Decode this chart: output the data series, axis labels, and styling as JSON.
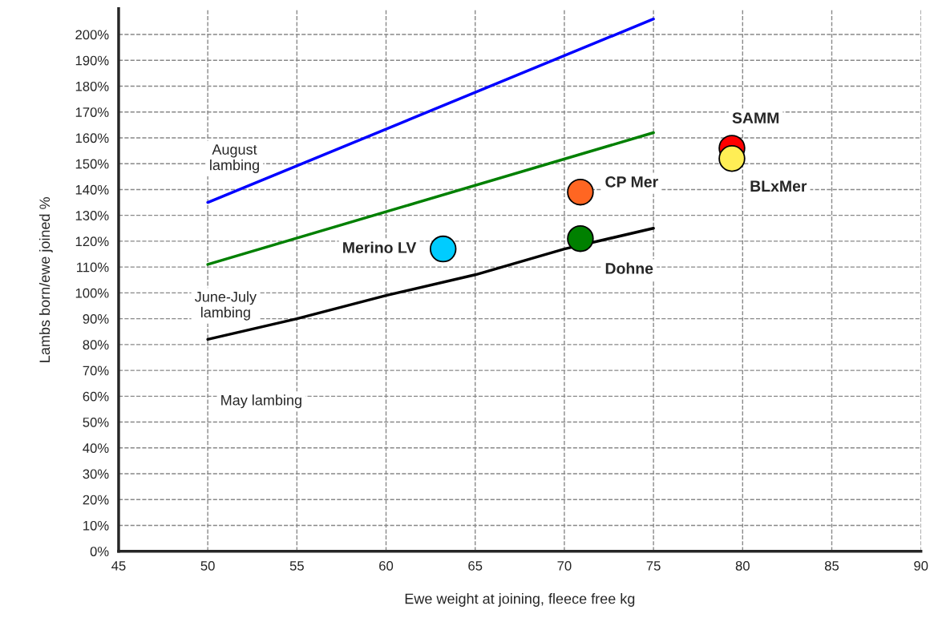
{
  "chart_data": {
    "type": "line",
    "xlabel": "Ewe weight at joining, fleece free kg",
    "ylabel": "Lambs born/ewe joined %",
    "xlim": [
      45,
      90
    ],
    "xticks": [
      45,
      50,
      55,
      60,
      65,
      70,
      75,
      80,
      85,
      90
    ],
    "ylim": [
      0,
      210
    ],
    "yticks": [
      {
        "value": 0,
        "label": "0%"
      },
      {
        "value": 10,
        "label": "10%"
      },
      {
        "value": 20,
        "label": "20%"
      },
      {
        "value": 30,
        "label": "30%"
      },
      {
        "value": 40,
        "label": "40%"
      },
      {
        "value": 50,
        "label": "50%"
      },
      {
        "value": 60,
        "label": "60%"
      },
      {
        "value": 70,
        "label": "70%"
      },
      {
        "value": 80,
        "label": "80%"
      },
      {
        "value": 90,
        "label": "90%"
      },
      {
        "value": 100,
        "label": "100%"
      },
      {
        "value": 110,
        "label": "110%"
      },
      {
        "value": 120,
        "label": "120%"
      },
      {
        "value": 130,
        "label": "130%"
      },
      {
        "value": 140,
        "label": "140%"
      },
      {
        "value": 150,
        "label": "150%"
      },
      {
        "value": 160,
        "label": "160%"
      },
      {
        "value": 170,
        "label": "170%"
      },
      {
        "value": 180,
        "label": "180%"
      },
      {
        "value": 190,
        "label": "190%"
      },
      {
        "value": 200,
        "label": "200%"
      }
    ],
    "grid": true,
    "series": [
      {
        "color": "#0000ff",
        "x": [
          50,
          75
        ],
        "values": [
          135,
          206
        ]
      },
      {
        "color": "#008000",
        "x": [
          50,
          75
        ],
        "values": [
          111,
          162
        ]
      },
      {
        "color": "#000000",
        "x": [
          50,
          55,
          60,
          65,
          70,
          75
        ],
        "values": [
          82,
          90,
          99,
          107,
          117,
          125
        ]
      },
      {
        "type": "scatter",
        "marker": "circle",
        "x": [
          63.2,
          70.9,
          70.9,
          79.4,
          79.4
        ],
        "values": [
          117,
          139,
          121,
          156,
          152
        ],
        "colors": [
          "#00ccff",
          "#ff6622",
          "#008000",
          "#ff0000",
          "#ffee55"
        ]
      }
    ],
    "annotations": [
      {
        "text": "Merino LV",
        "x": 63.2,
        "y": 117
      },
      {
        "text": "CP Mer",
        "x": 70.9,
        "y": 139
      },
      {
        "text": "Dohne",
        "x": 70.9,
        "y": 121
      },
      {
        "text": "SAMM",
        "x": 79.4,
        "y": 156
      },
      {
        "text": "BLxMer",
        "x": 79.4,
        "y": 152
      },
      "August\nlambing",
      "June-July\nlambing",
      "May lambing"
    ]
  }
}
